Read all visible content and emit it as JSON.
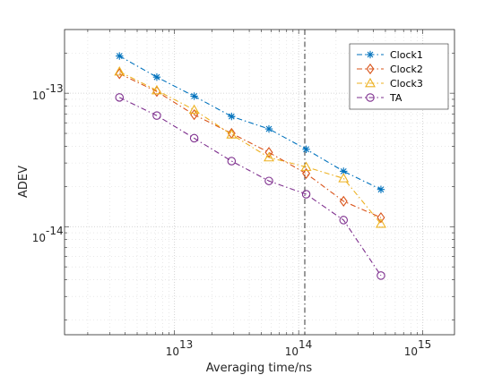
{
  "chart_data": {
    "type": "line",
    "xscale": "log",
    "yscale": "log",
    "xlabel": "Averaging time/ns",
    "ylabel": "ADEV",
    "xlim": [
      1300000000000.0,
      1800000000000000.0
    ],
    "ylim": [
      1.55e-15,
      3e-13
    ],
    "grid": true,
    "legend_position": "top-right",
    "x_ticks": [
      {
        "value": 10000000000000.0,
        "mantissa": "10",
        "exponent": "13"
      },
      {
        "value": 100000000000000.0,
        "mantissa": "10",
        "exponent": "14"
      },
      {
        "value": 1000000000000000.0,
        "mantissa": "10",
        "exponent": "15"
      }
    ],
    "y_ticks": [
      {
        "value": 1e-14,
        "mantissa": "10",
        "exponent": "-14"
      },
      {
        "value": 1e-13,
        "mantissa": "10",
        "exponent": "-13"
      }
    ],
    "x": [
      3600000000000.0,
      7200000000000.0,
      14400000000000.0,
      28800000000000.0,
      57600000000000.0,
      115000000000000.0,
      230000000000000.0,
      460000000000000.0
    ],
    "series": [
      {
        "name": "Clock1",
        "color": "#0072BD",
        "marker": "asterisk",
        "values": [
          1.9e-13,
          1.32e-13,
          9.5e-14,
          6.7e-14,
          5.4e-14,
          3.8e-14,
          2.6e-14,
          1.9e-14
        ]
      },
      {
        "name": "Clock2",
        "color": "#D95319",
        "marker": "diamond",
        "values": [
          1.4e-13,
          1.03e-13,
          6.9e-14,
          5e-14,
          3.6e-14,
          2.5e-14,
          1.55e-14,
          1.17e-14
        ]
      },
      {
        "name": "Clock3",
        "color": "#EDB120",
        "marker": "triangle",
        "values": [
          1.45e-13,
          1.05e-13,
          7.5e-14,
          4.9e-14,
          3.3e-14,
          2.8e-14,
          2.3e-14,
          1.05e-14
        ]
      },
      {
        "name": "TA",
        "color": "#7E2F8E",
        "marker": "circle",
        "values": [
          9.3e-14,
          6.8e-14,
          4.6e-14,
          3.1e-14,
          2.2e-14,
          1.75e-14,
          1.12e-14,
          4.3e-15
        ]
      }
    ]
  }
}
